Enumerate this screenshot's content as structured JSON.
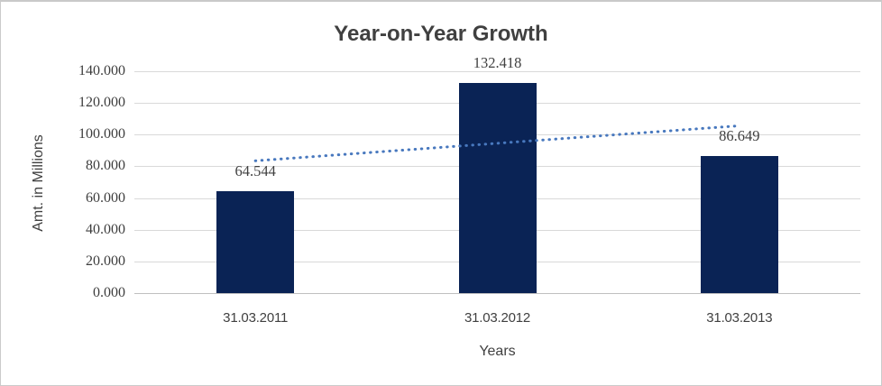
{
  "chart_data": {
    "type": "bar",
    "title": "Year-on-Year Growth",
    "xlabel": "Years",
    "ylabel": "Amt. in Millions",
    "categories": [
      "31.03.2011",
      "31.03.2012",
      "31.03.2013"
    ],
    "values": [
      64.544,
      132.418,
      86.649
    ],
    "data_labels": [
      "64.544",
      "132.418",
      "86.649"
    ],
    "ylim": [
      0,
      140
    ],
    "ytick_step": 20,
    "ytick_labels": [
      "0.000",
      "20.000",
      "40.000",
      "60.000",
      "80.000",
      "100.000",
      "120.000",
      "140.000"
    ],
    "grid": true,
    "legend": false,
    "trendline": {
      "type": "linear",
      "style": "dotted",
      "color": "#4878be",
      "values_at_category_centers": [
        83.48,
        94.54,
        105.59
      ]
    },
    "colors": {
      "bar": "#0a2355",
      "gridline": "#d9d9d9",
      "axis_line": "#bfbfbf",
      "text": "#404040"
    }
  }
}
